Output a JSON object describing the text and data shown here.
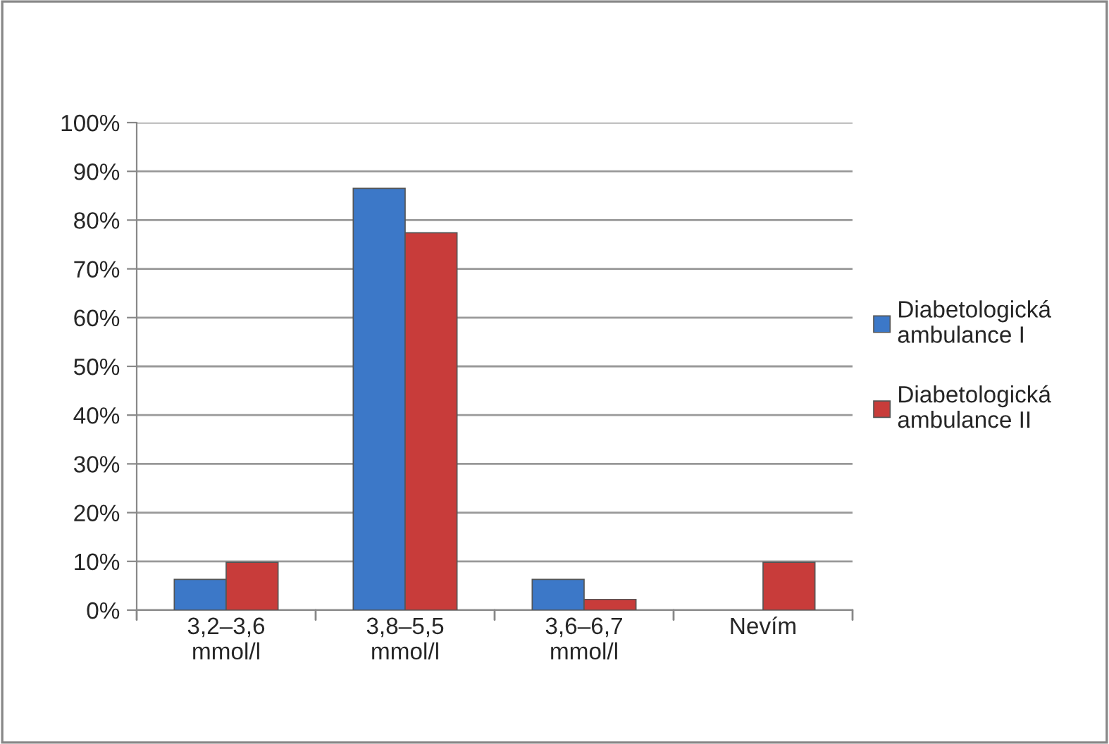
{
  "chart_data": {
    "type": "bar",
    "categories": [
      "3,2–3,6\nmmol/l",
      "3,8–5,5\nmmol/l",
      "3,6–6,7\nmmol/l",
      "Nevím"
    ],
    "series": [
      {
        "name": "Diabetologická\nambulance I",
        "color": "#3c78c8",
        "values": [
          6.3,
          86.5,
          6.3,
          null
        ]
      },
      {
        "name": "Diabetologická\nambulance II",
        "color": "#c83c3a",
        "values": [
          9.8,
          77.4,
          2.2,
          9.8
        ]
      }
    ],
    "ylim": [
      0,
      100
    ],
    "yticks": [
      {
        "value": 0,
        "label": "0%"
      },
      {
        "value": 10,
        "label": "10%"
      },
      {
        "value": 20,
        "label": "20%"
      },
      {
        "value": 30,
        "label": "30%"
      },
      {
        "value": 40,
        "label": "40%"
      },
      {
        "value": 50,
        "label": "50%"
      },
      {
        "value": 60,
        "label": "60%"
      },
      {
        "value": 70,
        "label": "70%"
      },
      {
        "value": 80,
        "label": "80%"
      },
      {
        "value": 90,
        "label": "90%"
      },
      {
        "value": 100,
        "label": "100%"
      }
    ],
    "grid": "y",
    "legend": "right"
  }
}
